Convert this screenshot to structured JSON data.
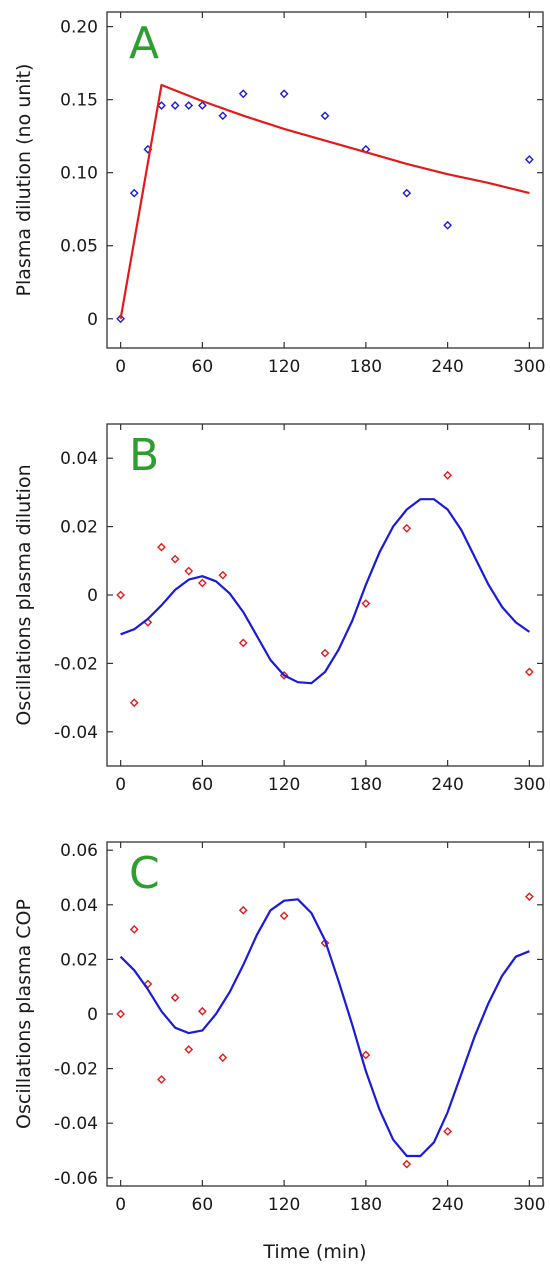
{
  "figure": {
    "xlabel": "Time (min)"
  },
  "chart_data": [
    {
      "panel_letter": "A",
      "type": "scatter",
      "ylabel": "Plasma dilution (no unit)",
      "xlim": [
        -10,
        310
      ],
      "ylim": [
        -0.02,
        0.21
      ],
      "xticks": [
        0,
        60,
        120,
        180,
        240,
        300
      ],
      "yticks": [
        0,
        0.05,
        0.1,
        0.15,
        0.2
      ],
      "ytick_labels": [
        "0",
        "0.05",
        "0.10",
        "0.15",
        "0.20"
      ],
      "series": [
        {
          "kind": "markers",
          "color": "#1a1adc",
          "x": [
            0,
            10,
            20,
            30,
            40,
            50,
            60,
            75,
            90,
            120,
            150,
            180,
            210,
            240,
            300
          ],
          "y": [
            0.0,
            0.086,
            0.116,
            0.146,
            0.146,
            0.146,
            0.146,
            0.139,
            0.154,
            0.154,
            0.139,
            0.116,
            0.086,
            0.064,
            0.109
          ]
        },
        {
          "kind": "line",
          "color": "#e41a1a",
          "x": [
            0,
            30,
            60,
            90,
            120,
            150,
            180,
            210,
            240,
            270,
            300
          ],
          "y": [
            0.0,
            0.16,
            0.149,
            0.139,
            0.13,
            0.122,
            0.114,
            0.106,
            0.099,
            0.093,
            0.086
          ]
        }
      ]
    },
    {
      "panel_letter": "B",
      "type": "scatter",
      "ylabel": "Oscillations plasma dilution",
      "xlim": [
        -10,
        310
      ],
      "ylim": [
        -0.05,
        0.05
      ],
      "xticks": [
        0,
        60,
        120,
        180,
        240,
        300
      ],
      "yticks": [
        -0.04,
        -0.02,
        0,
        0.02,
        0.04
      ],
      "ytick_labels": [
        "-0.04",
        "-0.02",
        "0",
        "0.02",
        "0.04"
      ],
      "series": [
        {
          "kind": "markers",
          "color": "#e41a1a",
          "x": [
            0,
            10,
            20,
            30,
            40,
            50,
            60,
            75,
            90,
            120,
            150,
            180,
            210,
            240,
            300
          ],
          "y": [
            0.0,
            -0.0315,
            -0.008,
            0.014,
            0.0105,
            0.007,
            0.0035,
            0.0058,
            -0.014,
            -0.0235,
            -0.017,
            -0.0025,
            0.0195,
            0.035,
            -0.0225
          ]
        },
        {
          "kind": "line",
          "color": "#1a1adc",
          "x": [
            0,
            10,
            20,
            30,
            40,
            50,
            60,
            70,
            80,
            90,
            100,
            110,
            120,
            130,
            140,
            150,
            160,
            170,
            180,
            190,
            200,
            210,
            220,
            230,
            240,
            250,
            260,
            270,
            280,
            290,
            300
          ],
          "y": [
            -0.0115,
            -0.01,
            -0.007,
            -0.003,
            0.0015,
            0.0045,
            0.0055,
            0.004,
            0.0005,
            -0.005,
            -0.012,
            -0.019,
            -0.0235,
            -0.0255,
            -0.0258,
            -0.0225,
            -0.016,
            -0.0075,
            0.003,
            0.0125,
            0.02,
            0.025,
            0.028,
            0.028,
            0.025,
            0.019,
            0.011,
            0.003,
            -0.0035,
            -0.008,
            -0.0108
          ]
        }
      ]
    },
    {
      "panel_letter": "C",
      "type": "scatter",
      "ylabel": "Oscillations plasma COP",
      "xlim": [
        -10,
        310
      ],
      "ylim": [
        -0.063,
        0.063
      ],
      "xticks": [
        0,
        60,
        120,
        180,
        240,
        300
      ],
      "yticks": [
        -0.06,
        -0.04,
        -0.02,
        0,
        0.02,
        0.04,
        0.06
      ],
      "ytick_labels": [
        "-0.06",
        "-0.04",
        "-0.02",
        "0",
        "0.02",
        "0.04",
        "0.06"
      ],
      "series": [
        {
          "kind": "markers",
          "color": "#e41a1a",
          "x": [
            0,
            10,
            20,
            30,
            40,
            50,
            60,
            75,
            90,
            120,
            150,
            180,
            210,
            240,
            300
          ],
          "y": [
            0.0,
            0.031,
            0.011,
            -0.024,
            0.006,
            -0.013,
            0.001,
            -0.016,
            0.038,
            0.036,
            0.026,
            -0.015,
            -0.055,
            -0.043,
            0.043
          ]
        },
        {
          "kind": "line",
          "color": "#1a1adc",
          "x": [
            0,
            10,
            20,
            30,
            40,
            50,
            60,
            70,
            80,
            90,
            100,
            110,
            120,
            130,
            140,
            150,
            160,
            170,
            180,
            190,
            200,
            210,
            220,
            230,
            240,
            250,
            260,
            270,
            280,
            290,
            300
          ],
          "y": [
            0.021,
            0.016,
            0.009,
            0.001,
            -0.005,
            -0.007,
            -0.006,
            0.0,
            0.008,
            0.018,
            0.029,
            0.038,
            0.0415,
            0.042,
            0.037,
            0.027,
            0.012,
            -0.004,
            -0.021,
            -0.035,
            -0.046,
            -0.052,
            -0.052,
            -0.047,
            -0.036,
            -0.022,
            -0.008,
            0.004,
            0.014,
            0.021,
            0.023
          ]
        }
      ]
    }
  ]
}
